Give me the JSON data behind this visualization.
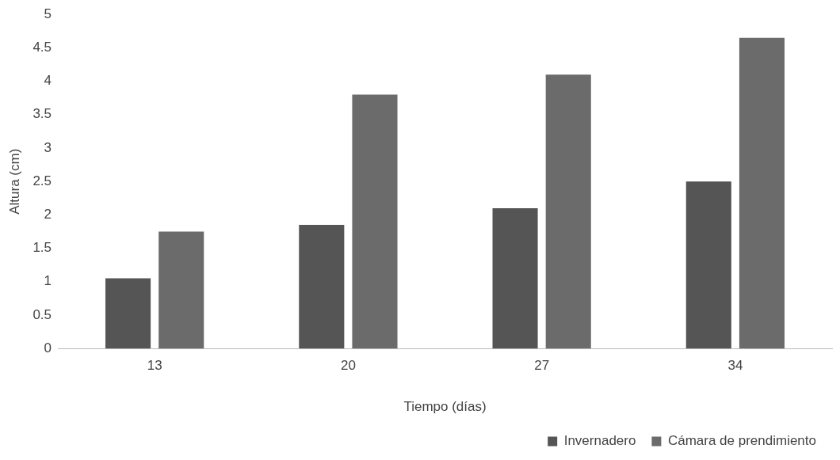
{
  "chart_data": {
    "type": "bar",
    "xlabel": "Tiempo (días)",
    "ylabel": "Altura (cm)",
    "categories": [
      "13",
      "20",
      "27",
      "34"
    ],
    "series": [
      {
        "name": "Invernadero",
        "color": "#555555",
        "values": [
          1.05,
          1.85,
          2.1,
          2.5
        ]
      },
      {
        "name": "Cámara de prendimiento",
        "color": "#6b6b6b",
        "values": [
          1.75,
          3.8,
          4.1,
          4.65
        ]
      }
    ],
    "ylim": [
      0,
      5
    ],
    "yticks": [
      0,
      0.5,
      1,
      1.5,
      2,
      2.5,
      3,
      3.5,
      4,
      4.5,
      5
    ],
    "grid": false,
    "legend": "bottom right"
  }
}
